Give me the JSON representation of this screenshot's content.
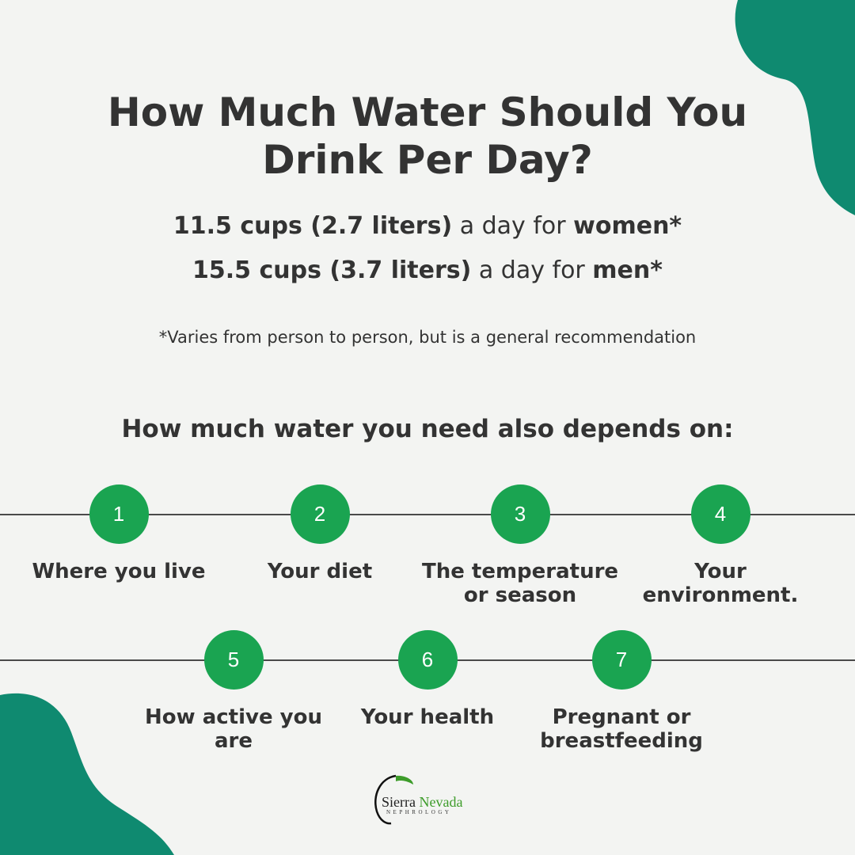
{
  "title": {
    "line1": "How Much Water Should You",
    "line2": "Drink Per Day?"
  },
  "recommendations": [
    {
      "amount": "11.5 cups (2.7 liters)",
      "middle": " a day for ",
      "group": "women*"
    },
    {
      "amount": "15.5 cups (3.7 liters)",
      "middle": " a day for ",
      "group": "men*"
    }
  ],
  "footnote": "*Varies from person to person, but is a general recommendation",
  "subheading": "How much water you need also depends on:",
  "factors": [
    {
      "number": "1",
      "label": "Where you live"
    },
    {
      "number": "2",
      "label": "Your diet"
    },
    {
      "number": "3",
      "label": "The temperature or season"
    },
    {
      "number": "4",
      "label": "Your environment."
    },
    {
      "number": "5",
      "label": "How active you are"
    },
    {
      "number": "6",
      "label": "Your health"
    },
    {
      "number": "7",
      "label": "Pregnant or breastfeeding"
    }
  ],
  "logo": {
    "word1": "Sierra",
    "word2": "Nevada",
    "subtitle": "NEPHROLOGY"
  },
  "colors": {
    "background": "#f3f4f2",
    "blob": "#0f8a70",
    "circle": "#1aa451",
    "text": "#333333",
    "logo_green": "#3d9c2a"
  }
}
